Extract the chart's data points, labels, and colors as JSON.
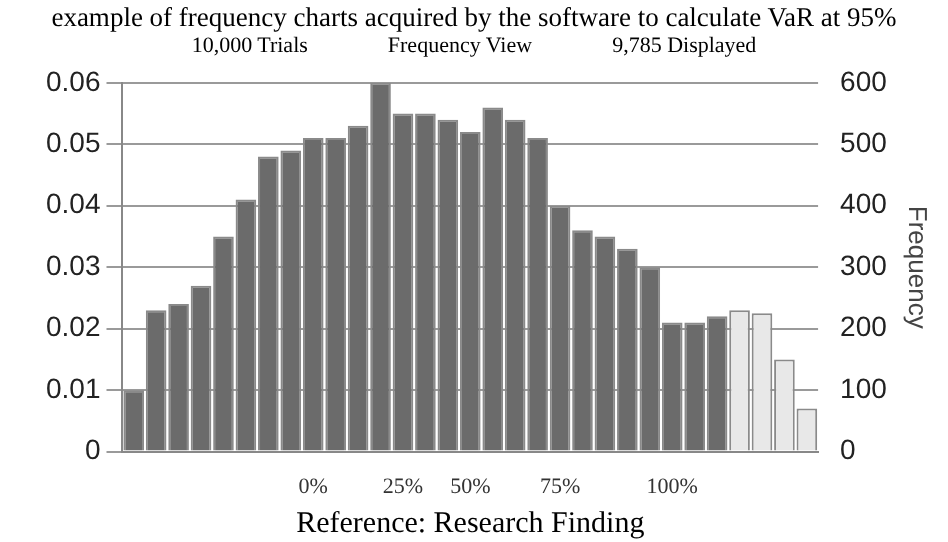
{
  "chart_data": {
    "type": "bar",
    "title": "example of frequency charts acquired by the software to calculate VaR at 95%",
    "annotations": [
      "10,000 Trials",
      "Frequency View",
      "9,785 Displayed"
    ],
    "xlabel": "Reference: Research Finding",
    "y2label": "Frequency",
    "categories": [
      null,
      null,
      null,
      null,
      null,
      null,
      null,
      null,
      "0%",
      null,
      null,
      null,
      "25%",
      null,
      null,
      "50%",
      null,
      null,
      null,
      "75%",
      null,
      null,
      null,
      null,
      "100%",
      null,
      null,
      null,
      null,
      null,
      null
    ],
    "values": [
      0.01,
      0.023,
      0.024,
      0.027,
      0.035,
      0.041,
      0.048,
      0.049,
      0.051,
      0.051,
      0.053,
      0.06,
      0.055,
      0.055,
      0.054,
      0.052,
      0.056,
      0.054,
      0.051,
      0.04,
      0.036,
      0.035,
      0.033,
      0.03,
      0.021,
      0.021,
      0.022,
      0.023,
      0.0225,
      0.015,
      0.007
    ],
    "colors": [
      "#6b6b6b",
      "#6b6b6b",
      "#6b6b6b",
      "#6b6b6b",
      "#6b6b6b",
      "#6b6b6b",
      "#6b6b6b",
      "#6b6b6b",
      "#6b6b6b",
      "#6b6b6b",
      "#6b6b6b",
      "#6b6b6b",
      "#6b6b6b",
      "#6b6b6b",
      "#6b6b6b",
      "#6b6b6b",
      "#6b6b6b",
      "#6b6b6b",
      "#6b6b6b",
      "#6b6b6b",
      "#6b6b6b",
      "#6b6b6b",
      "#6b6b6b",
      "#6b6b6b",
      "#6b6b6b",
      "#6b6b6b",
      "#6b6b6b",
      "#e8e8e8",
      "#e8e8e8",
      "#e8e8e8",
      "#e8e8e8"
    ],
    "ylim": [
      0,
      0.06
    ],
    "yticks": [
      0,
      0.01,
      0.02,
      0.03,
      0.04,
      0.05,
      0.06
    ],
    "y2lim": [
      0,
      600
    ],
    "y2ticks": [
      0,
      100,
      200,
      300,
      400,
      500,
      600
    ],
    "grid": "y"
  }
}
